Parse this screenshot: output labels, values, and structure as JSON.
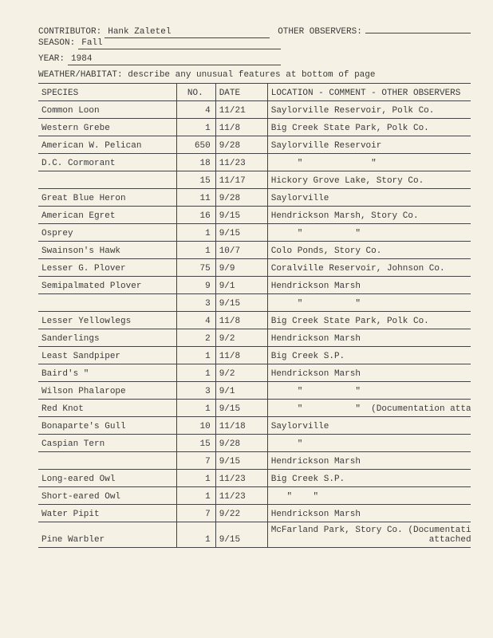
{
  "labels": {
    "contributor": "CONTRIBUTOR:",
    "otherObservers": "OTHER OBSERVERS:",
    "season": "SEASON:",
    "year": "YEAR:",
    "weather": "WEATHER/HABITAT: describe any unusual features at bottom of page"
  },
  "header": {
    "contributor": "Hank Zaletel",
    "otherObservers": "",
    "season": "Fall",
    "year": "1984"
  },
  "columns": {
    "species": "SPECIES",
    "no": "NO.",
    "date": "DATE",
    "location": "LOCATION - COMMENT - OTHER OBSERVERS"
  },
  "rows": [
    {
      "species": "Common Loon",
      "no": "4",
      "date": "11/21",
      "location": "Saylorville Reservoir, Polk Co."
    },
    {
      "species": "Western Grebe",
      "no": "1",
      "date": "11/8",
      "location": "Big Creek State Park, Polk Co."
    },
    {
      "species": "American W. Pelican",
      "no": "650",
      "date": "9/28",
      "location": "Saylorville Reservoir"
    },
    {
      "species": "D.C. Cormorant",
      "no": "18",
      "date": "11/23",
      "location": "     \"             \""
    },
    {
      "species": "",
      "no": "15",
      "date": "11/17",
      "location": "Hickory Grove Lake, Story Co."
    },
    {
      "species": "Great Blue Heron",
      "no": "11",
      "date": "9/28",
      "location": "Saylorville"
    },
    {
      "species": "American Egret",
      "no": "16",
      "date": "9/15",
      "location": "Hendrickson Marsh, Story Co."
    },
    {
      "species": "Osprey",
      "no": "1",
      "date": "9/15",
      "location": "     \"          \""
    },
    {
      "species": "Swainson's Hawk",
      "no": "1",
      "date": "10/7",
      "location": "Colo Ponds, Story Co."
    },
    {
      "species": "Lesser G. Plover",
      "no": "75",
      "date": "9/9",
      "location": "Coralville Reservoir, Johnson Co."
    },
    {
      "species": "Semipalmated Plover",
      "no": "9",
      "date": "9/1",
      "location": "Hendrickson Marsh"
    },
    {
      "species": "",
      "no": "3",
      "date": "9/15",
      "location": "     \"          \""
    },
    {
      "species": "Lesser Yellowlegs",
      "no": "4",
      "date": "11/8",
      "location": "Big Creek State Park, Polk Co."
    },
    {
      "species": "Sanderlings",
      "no": "2",
      "date": "9/2",
      "location": "Hendrickson Marsh"
    },
    {
      "species": "Least Sandpiper",
      "no": "1",
      "date": "11/8",
      "location": "Big Creek S.P."
    },
    {
      "species": "Baird's   \"",
      "no": "1",
      "date": "9/2",
      "location": "Hendrickson Marsh"
    },
    {
      "species": "Wilson Phalarope",
      "no": "3",
      "date": "9/1",
      "location": "     \"          \""
    },
    {
      "species": "Red Knot",
      "no": "1",
      "date": "9/15",
      "location": "     \"          \"  (Documentation attached)"
    },
    {
      "species": "Bonaparte's Gull",
      "no": "10",
      "date": "11/18",
      "location": "Saylorville"
    },
    {
      "species": "Caspian Tern",
      "no": "15",
      "date": "9/28",
      "location": "     \""
    },
    {
      "species": "",
      "no": "7",
      "date": "9/15",
      "location": "Hendrickson Marsh"
    },
    {
      "species": "Long-eared Owl",
      "no": "1",
      "date": "11/23",
      "location": "Big Creek S.P."
    },
    {
      "species": "Short-eared Owl",
      "no": "1",
      "date": "11/23",
      "location": "   \"    \""
    },
    {
      "species": "Water Pipit",
      "no": "7",
      "date": "9/22",
      "location": "Hendrickson Marsh"
    },
    {
      "species": "Pine Warbler",
      "no": "1",
      "date": "9/15",
      "location": "McFarland Park, Story Co. (Documentation\n                              attached)"
    }
  ]
}
